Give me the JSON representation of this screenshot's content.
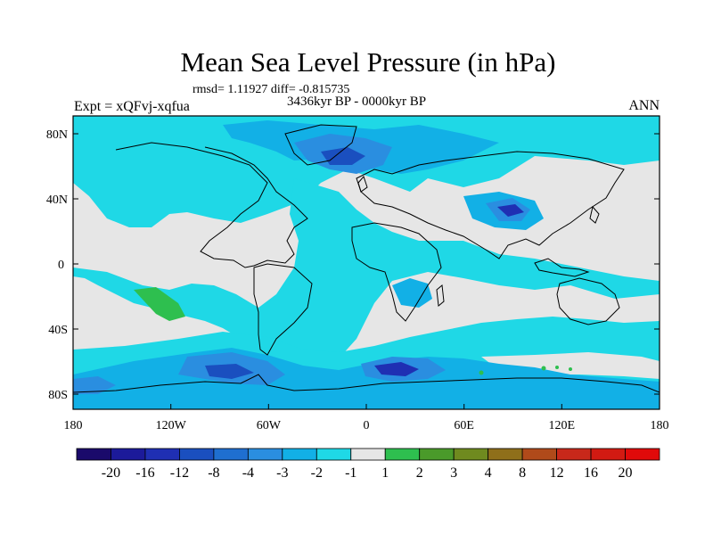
{
  "title": "Mean Sea Level Pressure (in hPa)",
  "stats": "rmsd= 1.11927 diff= -0.815735",
  "period": "3436kyr BP - 0000kyr BP",
  "experiment": "Expt = xQFvj-xqfua",
  "season": "ANN",
  "lat_labels": [
    "80N",
    "40N",
    "0",
    "40S",
    "80S"
  ],
  "lon_labels": [
    "180",
    "120W",
    "60W",
    "0",
    "60E",
    "120E",
    "180"
  ],
  "colorbar": {
    "labels": [
      "-20",
      "-16",
      "-12",
      "-8",
      "-4",
      "-3",
      "-2",
      "-1",
      "1",
      "2",
      "3",
      "4",
      "8",
      "12",
      "16",
      "20"
    ],
    "colors": [
      "#1a0a6b",
      "#1c1a9a",
      "#1f2fb3",
      "#1a4fbf",
      "#1f6fd0",
      "#2a8ee0",
      "#12b0e6",
      "#1fd8e6",
      "#e6e6e6",
      "#2ebf4f",
      "#4a9a2a",
      "#6f8a1f",
      "#8f6f1a",
      "#b04a1a",
      "#c8281a",
      "#d21a12",
      "#e00a0a"
    ]
  },
  "colors": {
    "neutral": "#e6e6e6",
    "light_cyan": "#1fd8e6",
    "cyan": "#12b0e6",
    "blue": "#2a8ee0",
    "mid_blue": "#1f6fd0",
    "dark_blue": "#1a4fbf",
    "navy": "#1f2fb3",
    "green": "#2ebf4f"
  }
}
